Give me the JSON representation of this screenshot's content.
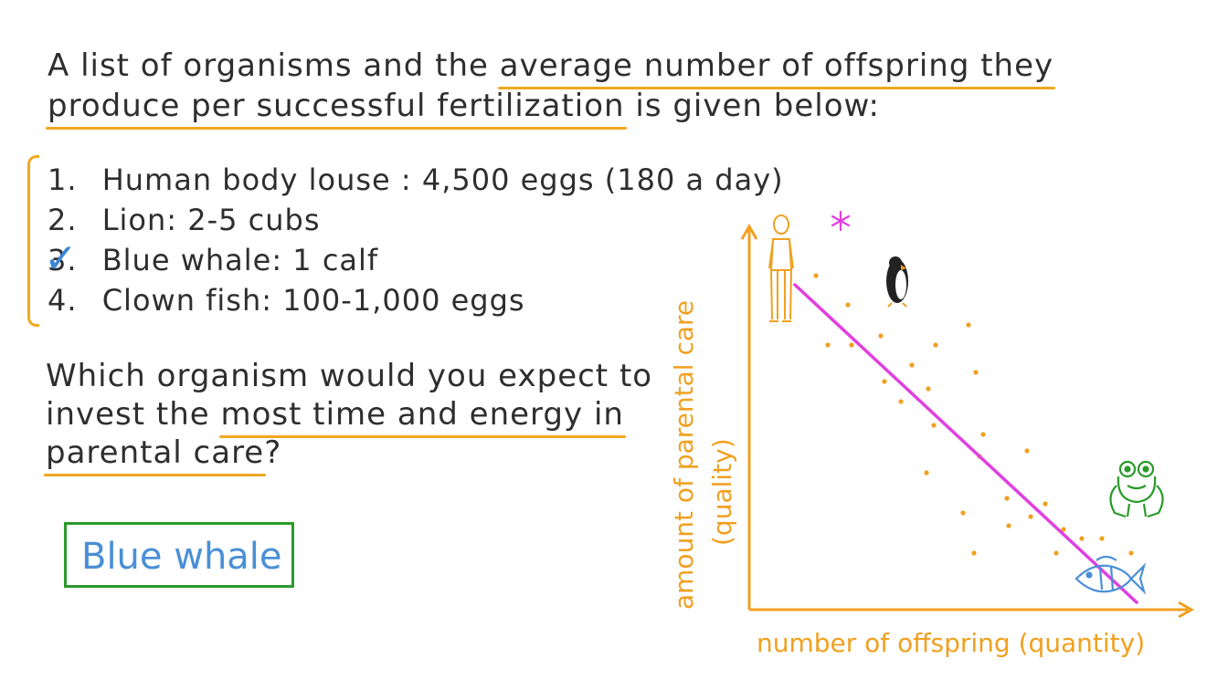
{
  "question": {
    "line1_a": "A list of organisms and the ",
    "line1_u": "average number of offspring they",
    "line2_u": "produce per successful fertilization",
    "line2_b": " is given below:"
  },
  "list": [
    {
      "num": "1.",
      "text": "Human body louse : 4,500 eggs (180 a day)"
    },
    {
      "num": "2.",
      "text": "Lion: 2-5 cubs"
    },
    {
      "num": "3.",
      "text": "Blue whale: 1 calf"
    },
    {
      "num": "4.",
      "text": "Clown fish: 100-1,000 eggs"
    }
  ],
  "check_mark": "✓",
  "prompt": {
    "line1": "Which organism would you expect to",
    "line2_a": "invest the ",
    "line2_u": "most time and energy in",
    "line3_u": "parental care",
    "line3_b": "?"
  },
  "answer": "Blue whale",
  "diagram": {
    "y_label_1": "amount of parental care",
    "y_label_2": "(quality)",
    "x_label": "number of offspring (quantity)",
    "colors": {
      "axis": "#f0a020",
      "trend": "#e040e0",
      "frog": "#2a9a2a",
      "fish": "#4a8fd6",
      "star": "#e040e0"
    },
    "icons": [
      "human-icon",
      "penguin-icon",
      "star-icon",
      "frog-icon",
      "fish-icon"
    ]
  }
}
